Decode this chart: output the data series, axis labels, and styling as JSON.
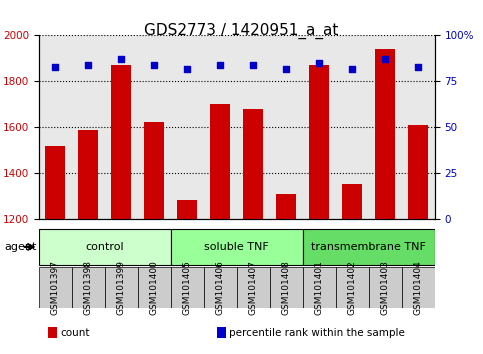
{
  "title": "GDS2773 / 1420951_a_at",
  "samples": [
    "GSM101397",
    "GSM101398",
    "GSM101399",
    "GSM101400",
    "GSM101405",
    "GSM101406",
    "GSM101407",
    "GSM101408",
    "GSM101401",
    "GSM101402",
    "GSM101403",
    "GSM101404"
  ],
  "counts": [
    1520,
    1590,
    1870,
    1625,
    1285,
    1700,
    1680,
    1310,
    1870,
    1355,
    1940,
    1610
  ],
  "percentiles": [
    83,
    84,
    87,
    84,
    82,
    84,
    84,
    82,
    85,
    82,
    87,
    83
  ],
  "ylim_left": [
    1200,
    2000
  ],
  "ylim_right": [
    0,
    100
  ],
  "yticks_left": [
    1200,
    1400,
    1600,
    1800,
    2000
  ],
  "yticks_right": [
    0,
    25,
    50,
    75,
    100
  ],
  "yticklabels_right": [
    "0",
    "25",
    "50",
    "75",
    "100%"
  ],
  "bar_color": "#cc0000",
  "dot_color": "#0000cc",
  "bar_bottom": 1200,
  "groups": [
    {
      "label": "control",
      "start": 0,
      "end": 4,
      "color": "#ccffcc"
    },
    {
      "label": "soluble TNF",
      "start": 4,
      "end": 8,
      "color": "#99ff99"
    },
    {
      "label": "transmembrane TNF",
      "start": 8,
      "end": 12,
      "color": "#66dd66"
    }
  ],
  "agent_label": "agent",
  "legend_items": [
    {
      "color": "#cc0000",
      "label": "count"
    },
    {
      "color": "#0000cc",
      "label": "percentile rank within the sample"
    }
  ],
  "background_color": "#ffffff",
  "plot_bg_color": "#e8e8e8",
  "grid_color": "#000000",
  "title_fontsize": 11,
  "tick_fontsize": 7.5
}
